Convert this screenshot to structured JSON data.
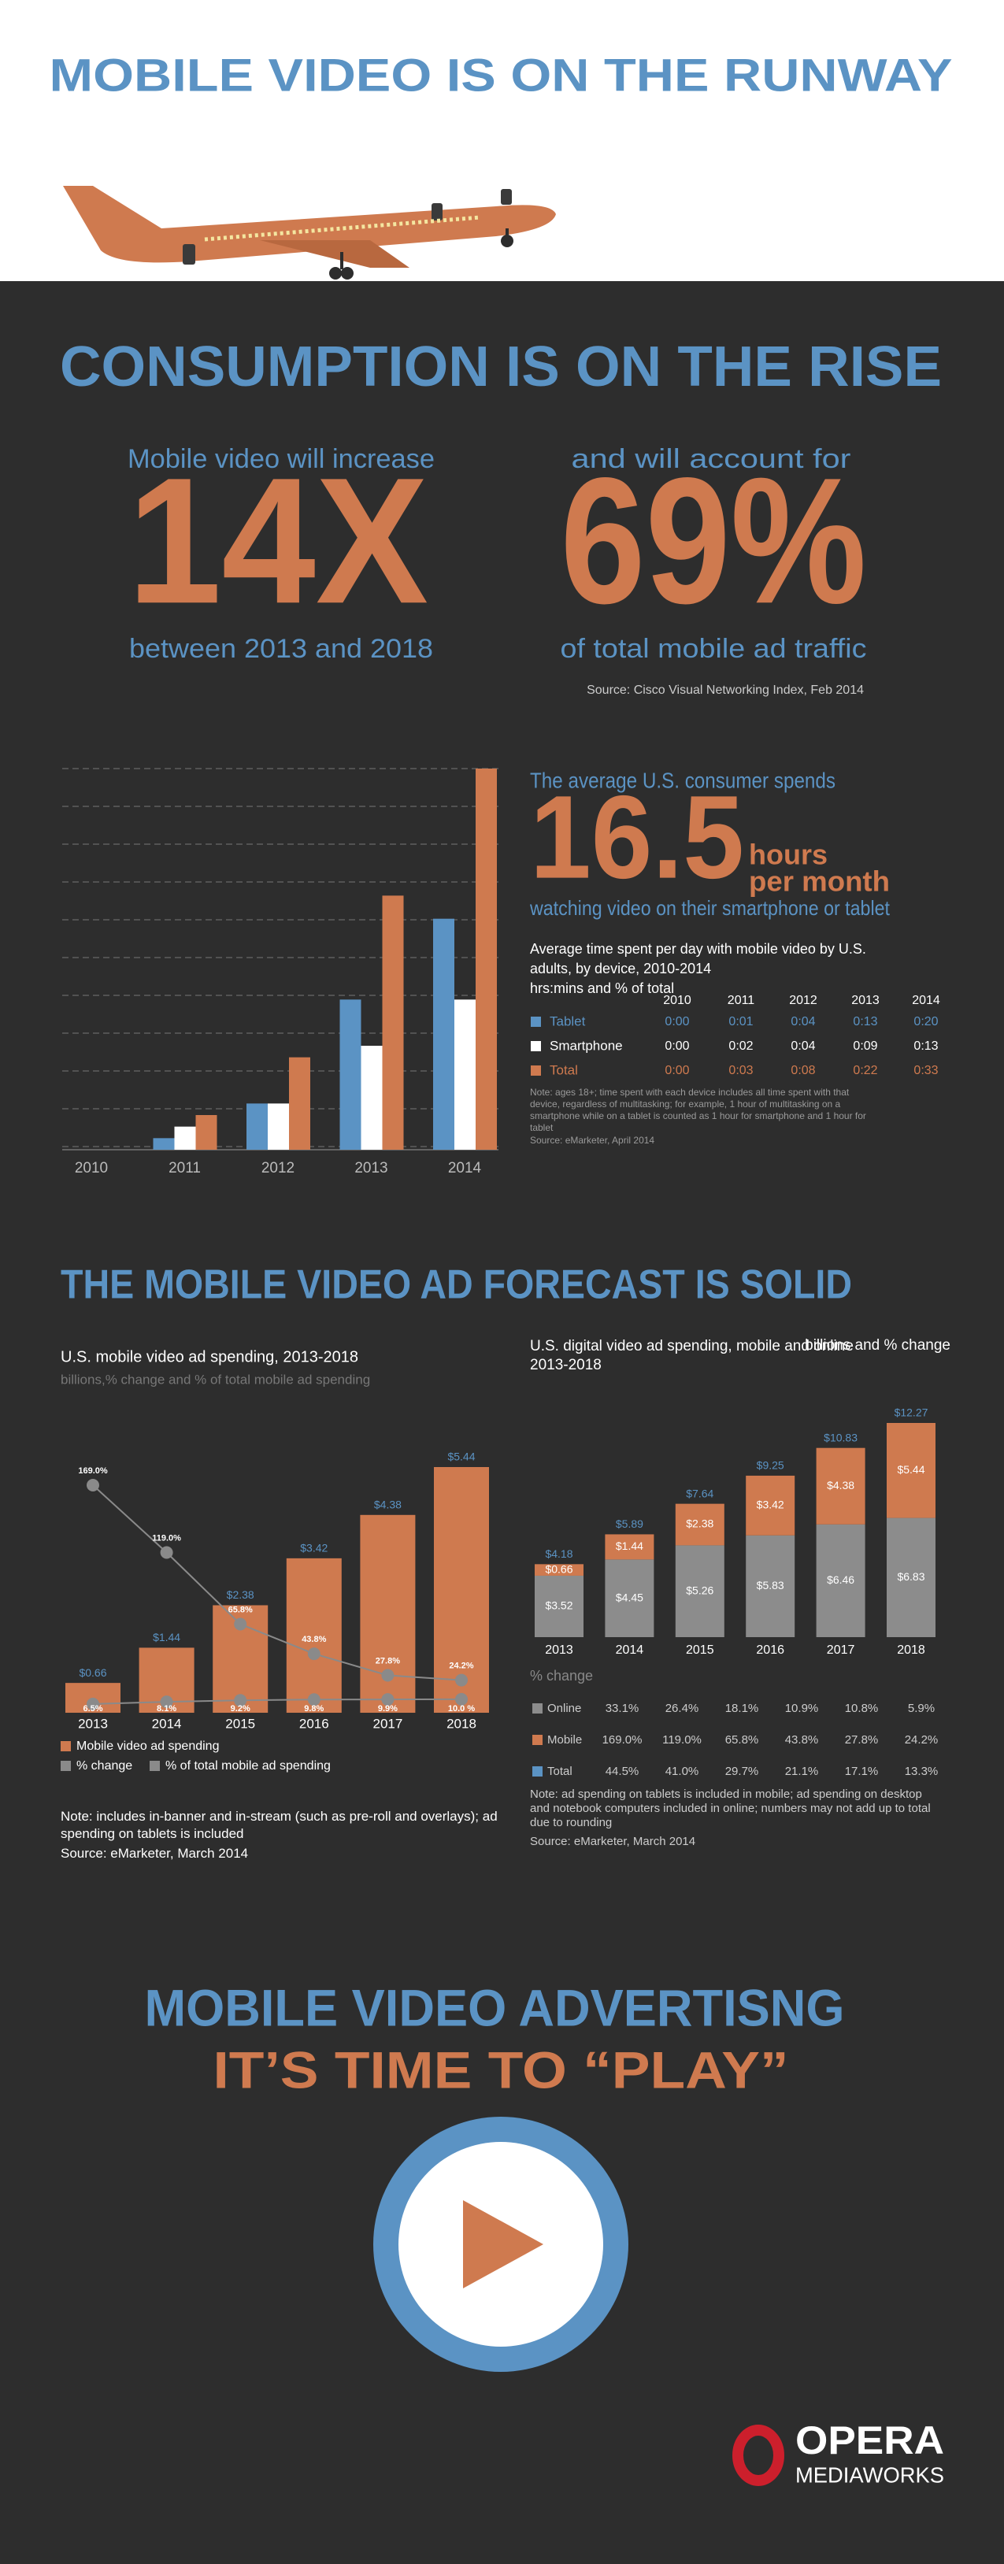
{
  "header": {
    "title": "MOBILE VIDEO IS ON THE RUNWAY"
  },
  "consumption": {
    "title": "CONSUMPTION IS ON THE RISE",
    "left": {
      "top": "Mobile video will increase",
      "big": "14X",
      "bottom": "between 2013 and 2018"
    },
    "right": {
      "top": "and will account for",
      "big": "69%",
      "bottom": "of total mobile ad traffic"
    },
    "source": "Source: Cisco Visual Networking Index, Feb 2014"
  },
  "stat": {
    "lead": "The average U.S. consumer spends",
    "big": "16.5",
    "unit1": "hours",
    "unit2": "per month",
    "tail": "watching video on their smartphone or tablet"
  },
  "time_chart": {
    "type": "bar",
    "title": "Average time spent per day with mobile video by U.S. adults, by device, 2010-2014",
    "subtitle": "hrs:mins and % of total",
    "categories": [
      "2010",
      "2011",
      "2012",
      "2013",
      "2014"
    ],
    "series": [
      {
        "name": "Tablet",
        "color": "#5b93c4",
        "values": [
          0,
          1,
          4,
          13,
          20
        ],
        "value_labels": [
          "0:00",
          "0:01",
          "0:04",
          "0:13",
          "0:20"
        ]
      },
      {
        "name": "Smartphone",
        "color": "#ffffff",
        "values": [
          0,
          2,
          4,
          9,
          13
        ],
        "value_labels": [
          "0:00",
          "0:02",
          "0:04",
          "0:09",
          "0:13"
        ]
      },
      {
        "name": "Total",
        "color": "#cf7a4f",
        "values": [
          0,
          3,
          8,
          22,
          33
        ],
        "value_labels": [
          "0:00",
          "0:03",
          "0:08",
          "0:22",
          "0:33"
        ]
      }
    ],
    "note": "Note: ages 18+; time spent with each device includes all time spent with that device, regardless of multitasking; for example, 1 hour of multitasking on a smartphone while on a tablet is counted as 1 hour for smartphone and 1 hour for tablet",
    "source": "Source: eMarketer, April 2014"
  },
  "forecast": {
    "title": "THE MOBILE VIDEO AD FORECAST IS SOLID"
  },
  "spending_chart": {
    "type": "bar",
    "title": "U.S. mobile video ad spending, 2013-2018",
    "subtitle": "billions,% change and % of total mobile ad spending",
    "categories": [
      "2013",
      "2014",
      "2015",
      "2016",
      "2017",
      "2018"
    ],
    "series": [
      {
        "name": "Mobile video ad spending",
        "color": "#cf7a4f",
        "values": [
          0.66,
          1.44,
          2.38,
          3.42,
          4.38,
          5.44
        ],
        "value_labels": [
          "$0.66",
          "$1.44",
          "$2.38",
          "$3.42",
          "$4.38",
          "$5.44"
        ]
      },
      {
        "name": "% change",
        "color": "#8a8a8a",
        "axis": "y2",
        "values": [
          169.0,
          119.0,
          65.8,
          43.8,
          27.8,
          24.2
        ],
        "value_labels": [
          "169.0%",
          "119.0%",
          "65.8%",
          "43.8%",
          "27.8%",
          "24.2%"
        ]
      },
      {
        "name": "% of total mobile ad spending",
        "color": "#8a8a8a",
        "axis": "y2",
        "values": [
          6.5,
          8.1,
          9.2,
          9.8,
          9.9,
          10.0
        ],
        "value_labels": [
          "6.5%",
          "8.1%",
          "9.2%",
          "9.8%",
          "9.9%",
          "10.0 %"
        ]
      }
    ],
    "note": "Note: includes in-banner and in-stream (such as pre-roll and overlays); ad spending on tablets is included",
    "source": "Source: eMarketer, March 2014"
  },
  "digital_chart": {
    "type": "stacked_bar",
    "title": "U.S. digital video ad spending, mobile and online 2013-2018",
    "subtitle": "billions and % change",
    "categories": [
      "2013",
      "2014",
      "2015",
      "2016",
      "2017",
      "2018"
    ],
    "series": [
      {
        "name": "Online",
        "color": "#8c8c8c",
        "values": [
          3.52,
          4.45,
          5.26,
          5.83,
          6.46,
          6.83
        ],
        "value_labels": [
          "$3.52",
          "$4.45",
          "$5.26",
          "$5.83",
          "$6.46",
          "$6.83"
        ]
      },
      {
        "name": "Mobile",
        "color": "#cf7a4f",
        "values": [
          0.66,
          1.44,
          2.38,
          3.42,
          4.38,
          5.44
        ],
        "value_labels": [
          "$0.66",
          "$1.44",
          "$2.38",
          "$3.42",
          "$4.38",
          "$5.44"
        ]
      }
    ],
    "totals": {
      "values": [
        4.18,
        5.89,
        7.64,
        9.25,
        10.83,
        12.27
      ],
      "value_labels": [
        "$4.18",
        "$5.89",
        "$7.64",
        "$9.25",
        "$10.83",
        "$12.27"
      ]
    },
    "change_table": {
      "title": "% change",
      "rows": [
        {
          "name": "Online",
          "color": "#8c8c8c",
          "values": [
            "33.1%",
            "26.4%",
            "18.1%",
            "10.9%",
            "10.8%",
            "5.9%"
          ]
        },
        {
          "name": "Mobile",
          "color": "#cf7a4f",
          "values": [
            "169.0%",
            "119.0%",
            "65.8%",
            "43.8%",
            "27.8%",
            "24.2%"
          ]
        },
        {
          "name": "Total",
          "color": "#5b93c4",
          "values": [
            "44.5%",
            "41.0%",
            "29.7%",
            "21.1%",
            "17.1%",
            "13.3%"
          ]
        }
      ]
    },
    "note": "Note: ad spending on tablets is included in mobile; ad spending on desktop and notebook computers included in online; numbers may not add up to total due to rounding",
    "source": "Source: eMarketer, March 2014"
  },
  "footer": {
    "line1": "MOBILE VIDEO ADVERTISNG",
    "line2": "IT’S TIME TO “PLAY”",
    "logo": "OPERA",
    "logo_sub": "MEDIAWORKS"
  }
}
